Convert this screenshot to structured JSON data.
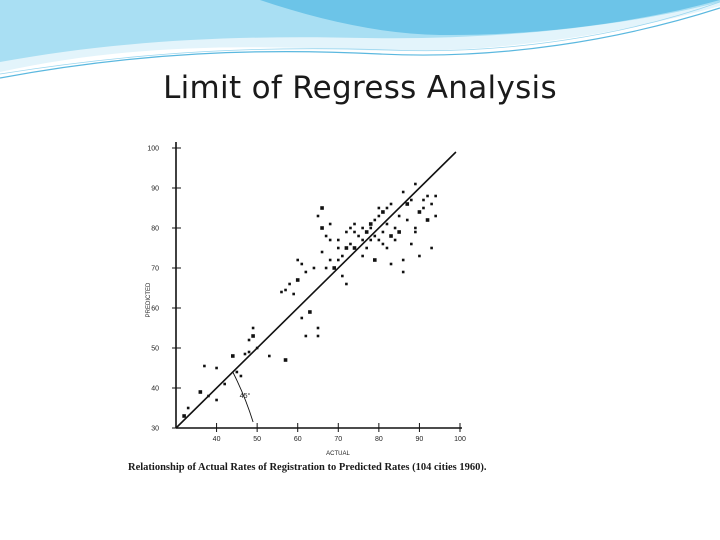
{
  "slide": {
    "title": "Limit of Regress Analysis"
  },
  "colors": {
    "swoosh_light": "#d9f0fa",
    "swoosh_mid": "#8fd3ee",
    "swoosh_dark": "#3aa6d6",
    "ink": "#1a1a1a"
  },
  "figure": {
    "caption": "Relationship of Actual Rates of Registration to Predicted Rates (104 cities 1960)."
  },
  "chart_data": {
    "type": "scatter",
    "xlabel": "ACTUAL",
    "ylabel": "PREDICTED",
    "xlim": [
      30,
      100
    ],
    "ylim": [
      30,
      100
    ],
    "x_ticks": [
      40,
      50,
      60,
      70,
      80,
      90,
      100
    ],
    "y_ticks": [
      30,
      40,
      50,
      60,
      70,
      80,
      90,
      100
    ],
    "grid": false,
    "reference_line": {
      "label": "45°",
      "from": [
        30,
        30
      ],
      "to": [
        99,
        99
      ]
    },
    "points": [
      [
        32,
        33
      ],
      [
        33,
        35
      ],
      [
        37,
        45.5
      ],
      [
        40,
        45
      ],
      [
        40,
        37
      ],
      [
        44,
        48
      ],
      [
        45,
        44
      ],
      [
        46,
        43
      ],
      [
        47,
        48.5
      ],
      [
        49,
        55
      ],
      [
        49,
        53
      ],
      [
        48,
        49
      ],
      [
        56,
        64
      ],
      [
        57,
        64.5
      ],
      [
        59,
        63.5
      ],
      [
        60,
        67
      ],
      [
        60,
        72
      ],
      [
        61,
        57.5
      ],
      [
        62,
        69
      ],
      [
        62,
        53
      ],
      [
        63,
        59
      ],
      [
        65,
        55
      ],
      [
        65,
        53
      ],
      [
        65,
        83
      ],
      [
        66,
        74
      ],
      [
        66,
        85
      ],
      [
        67,
        70
      ],
      [
        67,
        78
      ],
      [
        68,
        81
      ],
      [
        68,
        77
      ],
      [
        69,
        70
      ],
      [
        70,
        72
      ],
      [
        70,
        75
      ],
      [
        71,
        73
      ],
      [
        71,
        68
      ],
      [
        72,
        75
      ],
      [
        72,
        66
      ],
      [
        73,
        76
      ],
      [
        73,
        80
      ],
      [
        74,
        79
      ],
      [
        74,
        75
      ],
      [
        75,
        78
      ],
      [
        76,
        80
      ],
      [
        76,
        73
      ],
      [
        77,
        75
      ],
      [
        77,
        79
      ],
      [
        78,
        77
      ],
      [
        78,
        80
      ],
      [
        79,
        82
      ],
      [
        79,
        78
      ],
      [
        79,
        72
      ],
      [
        80,
        85
      ],
      [
        80,
        83
      ],
      [
        80,
        77
      ],
      [
        81,
        76
      ],
      [
        81,
        84
      ],
      [
        81,
        79
      ],
      [
        82,
        75
      ],
      [
        82,
        81
      ],
      [
        82,
        85
      ],
      [
        83,
        78
      ],
      [
        83,
        86
      ],
      [
        83,
        71
      ],
      [
        84,
        80
      ],
      [
        84,
        77
      ],
      [
        85,
        79
      ],
      [
        85,
        83
      ],
      [
        86,
        89
      ],
      [
        86,
        72
      ],
      [
        87,
        82
      ],
      [
        87,
        86
      ],
      [
        88,
        87
      ],
      [
        88,
        76
      ],
      [
        89,
        91
      ],
      [
        89,
        80
      ],
      [
        90,
        84
      ],
      [
        90,
        73
      ],
      [
        91,
        85
      ],
      [
        91,
        87
      ],
      [
        92,
        88
      ],
      [
        92,
        82
      ],
      [
        93,
        86
      ],
      [
        93,
        75
      ],
      [
        94,
        88
      ],
      [
        94,
        83
      ],
      [
        78,
        81
      ],
      [
        76,
        77
      ],
      [
        74,
        81
      ],
      [
        72,
        79
      ],
      [
        70,
        77
      ],
      [
        66,
        80
      ],
      [
        68,
        72
      ],
      [
        64,
        70
      ],
      [
        61,
        71
      ],
      [
        58,
        66
      ],
      [
        57,
        47
      ],
      [
        53,
        48
      ],
      [
        50,
        50
      ],
      [
        48,
        52
      ],
      [
        42,
        41
      ],
      [
        36,
        39
      ],
      [
        38,
        38
      ],
      [
        86,
        69
      ],
      [
        89,
        79
      ]
    ]
  }
}
